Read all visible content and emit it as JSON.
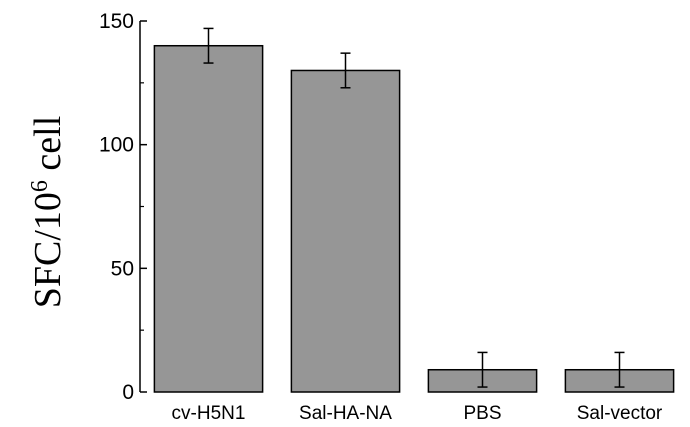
{
  "chart_data": {
    "type": "bar",
    "categories": [
      "cv-H5N1",
      "Sal-HA-NA",
      "PBS",
      "Sal-vector"
    ],
    "values": [
      140,
      130,
      9,
      9
    ],
    "errors": [
      7,
      7,
      7,
      7
    ],
    "ylabel_main": "SFC/10",
    "ylabel_sup": "6",
    "ylabel_tail": " cell",
    "xlabel": "",
    "ylim": [
      0,
      150
    ],
    "yticks": [
      0,
      50,
      100,
      150
    ],
    "bar_color": "#969696",
    "grid": false
  }
}
